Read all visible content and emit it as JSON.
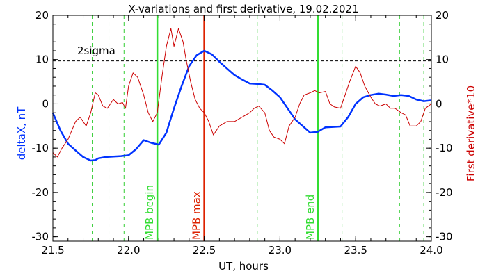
{
  "chart_data": {
    "type": "line",
    "title": "X-variations and first derivative, 19.02.2021",
    "xlabel": "UT, hours",
    "ylabel_left": "deltaX, nT",
    "ylabel_right": "First derivative*10",
    "xlim": [
      21.5,
      24.0
    ],
    "ylim": [
      -31,
      20
    ],
    "x_ticks": [
      "21.5",
      "22.0",
      "22.5",
      "23.0",
      "23.5",
      "24.0"
    ],
    "y_ticks": [
      "20",
      "10",
      "0",
      "-10",
      "-20",
      "-30"
    ],
    "grid": false,
    "colors": {
      "deltaX": "#0033ff",
      "derivative": "#cc0000",
      "marker_green": "#33dd33",
      "marker_red": "#dd2200",
      "dashed_green": "#33cc33"
    },
    "threshold": {
      "label": "2sigma",
      "value": 9.7
    },
    "zero_line": 0,
    "markers": [
      {
        "label": "MPB begin",
        "x": 22.19,
        "color": "#33dd33"
      },
      {
        "label": "MPB max",
        "x": 22.5,
        "color": "#dd2200"
      },
      {
        "label": "MPB end",
        "x": 23.25,
        "color": "#33dd33"
      }
    ],
    "dashed_lines_x": [
      21.76,
      21.87,
      21.97,
      22.85,
      23.41,
      23.79,
      23.95
    ],
    "series": [
      {
        "key": "deltaX",
        "x": [
          21.5,
          21.55,
          21.6,
          21.65,
          21.7,
          21.75,
          21.78,
          21.8,
          21.85,
          21.9,
          21.95,
          22.0,
          22.05,
          22.1,
          22.15,
          22.2,
          22.25,
          22.3,
          22.35,
          22.4,
          22.45,
          22.5,
          22.55,
          22.6,
          22.65,
          22.7,
          22.75,
          22.8,
          22.85,
          22.9,
          22.95,
          23.0,
          23.05,
          23.1,
          23.15,
          23.2,
          23.25,
          23.3,
          23.35,
          23.4,
          23.45,
          23.5,
          23.55,
          23.6,
          23.65,
          23.7,
          23.75,
          23.8,
          23.85,
          23.9,
          23.95,
          24.0
        ],
        "values": [
          -2,
          -6,
          -9,
          -10.5,
          -12,
          -12.8,
          -12.7,
          -12.3,
          -12,
          -11.9,
          -11.8,
          -11.6,
          -10.2,
          -8.2,
          -8.8,
          -9.2,
          -6.5,
          -1,
          4,
          8.5,
          11,
          12,
          11.2,
          9.5,
          8,
          6.5,
          5.5,
          4.6,
          4.5,
          4.3,
          3,
          1.5,
          -1,
          -3.5,
          -5,
          -6.5,
          -6.3,
          -5.3,
          -5.2,
          -5.1,
          -3,
          0,
          1.5,
          2,
          2.3,
          2.1,
          1.8,
          2,
          1.8,
          1,
          0.6,
          0.8
        ]
      },
      {
        "key": "derivative",
        "x": [
          21.5,
          21.53,
          21.56,
          21.6,
          21.65,
          21.68,
          21.72,
          21.75,
          21.78,
          21.8,
          21.83,
          21.86,
          21.88,
          21.9,
          21.93,
          21.96,
          21.98,
          22.0,
          22.03,
          22.06,
          22.1,
          22.13,
          22.16,
          22.19,
          22.22,
          22.25,
          22.28,
          22.3,
          22.33,
          22.36,
          22.38,
          22.41,
          22.44,
          22.47,
          22.5,
          22.53,
          22.56,
          22.6,
          22.65,
          22.7,
          22.75,
          22.8,
          22.83,
          22.86,
          22.9,
          22.93,
          22.96,
          23.0,
          23.03,
          23.06,
          23.1,
          23.13,
          23.16,
          23.2,
          23.23,
          23.26,
          23.3,
          23.33,
          23.36,
          23.4,
          23.43,
          23.46,
          23.5,
          23.53,
          23.56,
          23.6,
          23.63,
          23.66,
          23.7,
          23.73,
          23.76,
          23.8,
          23.83,
          23.86,
          23.9,
          23.93,
          23.96,
          24.0
        ],
        "values": [
          -11,
          -12,
          -10,
          -8,
          -4,
          -3,
          -5,
          -2,
          2.5,
          2,
          -0.5,
          -1,
          0,
          1,
          0,
          0.3,
          -1,
          4,
          7,
          6,
          2,
          -2,
          -4,
          -2,
          6,
          13,
          17,
          13,
          17,
          14,
          10,
          5,
          1,
          -1,
          -2,
          -4,
          -7,
          -5,
          -4,
          -4,
          -3,
          -2,
          -1,
          -0.5,
          -2,
          -6,
          -7.5,
          -8,
          -9,
          -5,
          -3,
          0,
          2,
          2.5,
          3,
          2.5,
          2.8,
          0,
          -0.7,
          -1,
          2,
          5,
          8.5,
          7,
          4,
          1.5,
          0,
          -0.5,
          0,
          -1,
          -1,
          -2,
          -2.5,
          -5,
          -5,
          -4,
          -1,
          0
        ]
      }
    ]
  }
}
